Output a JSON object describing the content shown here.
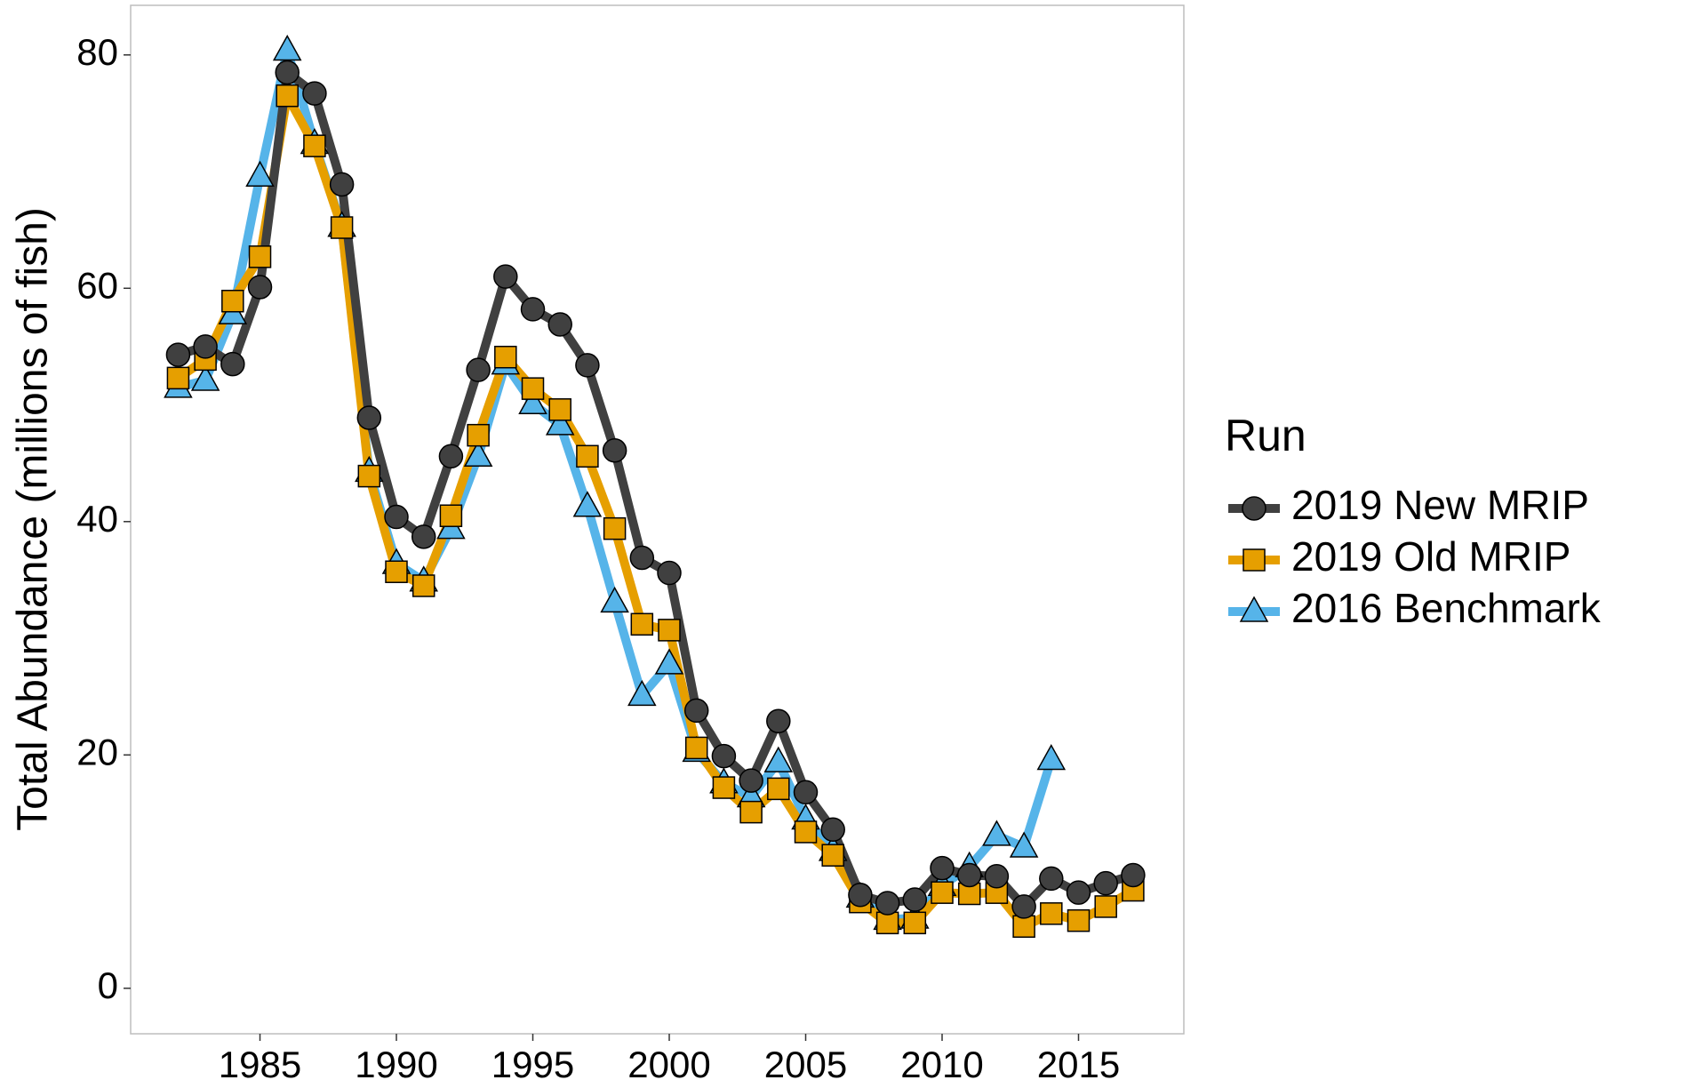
{
  "chart_data": {
    "type": "line",
    "y_label": "Total Abundance (millions of fish)",
    "legend_title": "Run",
    "legend": "right",
    "grid": false,
    "x": [
      1982,
      1983,
      1984,
      1985,
      1986,
      1987,
      1988,
      1989,
      1990,
      1991,
      1992,
      1993,
      1994,
      1995,
      1996,
      1997,
      1998,
      1999,
      2000,
      2001,
      2002,
      2003,
      2004,
      2005,
      2006,
      2007,
      2008,
      2009,
      2010,
      2011,
      2012,
      2013,
      2014,
      2015,
      2016,
      2017
    ],
    "series": [
      {
        "name": "2019 New MRIP",
        "color": "#404040",
        "marker": "circle",
        "values": [
          54.3,
          55,
          53.5,
          60.1,
          78.5,
          76.7,
          68.9,
          48.9,
          40.4,
          38.7,
          45.6,
          53,
          61,
          58.2,
          56.9,
          53.4,
          46.1,
          36.9,
          35.6,
          23.8,
          19.9,
          17.8,
          22.9,
          16.8,
          13.6,
          8,
          7.3,
          7.6,
          10.3,
          9.7,
          9.6,
          7,
          9.4,
          8.2,
          9,
          9.7
        ]
      },
      {
        "name": "2019 Old MRIP",
        "color": "#E69F00",
        "marker": "square",
        "values": [
          52.3,
          53.9,
          58.9,
          62.7,
          76.5,
          72.2,
          65.2,
          43.9,
          35.7,
          34.5,
          40.5,
          47.4,
          54.1,
          51.4,
          49.6,
          45.6,
          39.4,
          31.2,
          30.7,
          20.6,
          17.2,
          15.1,
          17.1,
          13.4,
          11.4,
          7.4,
          5.6,
          5.6,
          8.2,
          8.1,
          8.2,
          5.3,
          6.4,
          5.8,
          7,
          8.4
        ]
      },
      {
        "name": "2016 Benchmark",
        "color": "#56B4E9",
        "marker": "triangle",
        "values": [
          51.5,
          52.1,
          57.8,
          69.6,
          80.4,
          72.4,
          65.3,
          44.3,
          36.4,
          34.9,
          39.4,
          45.6,
          53.5,
          50.1,
          48.3,
          41.3,
          33.1,
          25.1,
          27.8,
          20.3,
          17.6,
          16.4,
          19.4,
          14.5,
          11.8,
          7.8,
          5.9,
          6,
          8.8,
          10.4,
          13.1,
          12.1,
          19.6,
          null,
          null,
          null
        ]
      }
    ],
    "xlim": [
      1980.26,
      2018.86
    ],
    "xticks": [
      1985,
      1990,
      1995,
      2000,
      2005,
      2010,
      2015
    ],
    "ylim": [
      -3.9,
      84.25
    ],
    "yticks": [
      0,
      20,
      40,
      60,
      80
    ]
  }
}
